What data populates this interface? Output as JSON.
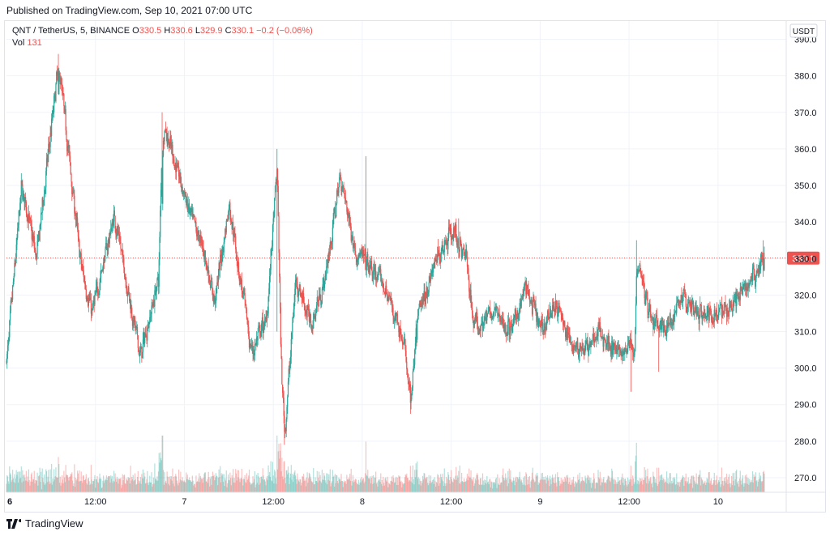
{
  "header": {
    "published": "Published on TradingView.com, Sep 10, 2021 07:00 UTC"
  },
  "legend": {
    "symbol": "QNT / TetherUS, 5, BINANCE",
    "o_label": "O",
    "o_value": "330.5",
    "h_label": "H",
    "h_value": "330.6",
    "l_label": "L",
    "l_value": "329.9",
    "c_label": "C",
    "c_value": "330.1",
    "change": "−0.2 (−0.06%)",
    "vol_label": "Vol",
    "vol_value": "131"
  },
  "currency_button": "USDT",
  "brand": {
    "name": "TradingView"
  },
  "colors": {
    "up": "#26a69a",
    "down": "#ef5350",
    "grid": "#f0f3fa",
    "text": "#131722",
    "price_line": "#ef5350"
  },
  "chart_data": {
    "type": "candlestick",
    "y_axis": {
      "ticks": [
        270.0,
        280.0,
        290.0,
        300.0,
        310.0,
        320.0,
        330.0,
        340.0,
        350.0,
        360.0,
        370.0,
        380.0,
        390.0
      ],
      "tick_labels": [
        "270.0",
        "280.0",
        "290.0",
        "300.0",
        "310.0",
        "320.0",
        "330.0",
        "340.0",
        "350.0",
        "360.0",
        "370.0",
        "380.0",
        "390.0"
      ],
      "range": [
        266,
        395
      ]
    },
    "x_axis": {
      "ticks": [
        "6",
        "12:00",
        "7",
        "12:00",
        "8",
        "12:00",
        "9",
        "12:00",
        "10"
      ],
      "bold": [
        true,
        false,
        false,
        false,
        false,
        false,
        false,
        false,
        false
      ],
      "range": [
        "2021-09-06 00:00",
        "2021-09-10 06:15"
      ]
    },
    "last_price": 330.1,
    "last_price_label": "330.1",
    "anchors": [
      [
        "2021-09-06 00:00",
        302
      ],
      [
        "2021-09-06 02:00",
        350
      ],
      [
        "2021-09-06 04:00",
        330
      ],
      [
        "2021-09-06 07:00",
        384
      ],
      [
        "2021-09-06 10:00",
        328
      ],
      [
        "2021-09-06 11:30",
        315
      ],
      [
        "2021-09-06 14:30",
        342
      ],
      [
        "2021-09-06 18:00",
        303
      ],
      [
        "2021-09-06 20:30",
        325
      ],
      [
        "2021-09-06 21:00",
        368
      ],
      [
        "2021-09-07 01:00",
        340
      ],
      [
        "2021-09-07 02:30",
        333
      ],
      [
        "2021-09-07 04:00",
        318
      ],
      [
        "2021-09-07 06:00",
        345
      ],
      [
        "2021-09-07 09:00",
        304
      ],
      [
        "2021-09-07 11:00",
        313
      ],
      [
        "2021-09-07 12:30",
        355
      ],
      [
        "2021-09-07 13:00",
        300
      ],
      [
        "2021-09-07 13:30",
        282
      ],
      [
        "2021-09-07 15:00",
        325
      ],
      [
        "2021-09-07 17:00",
        312
      ],
      [
        "2021-09-07 19:00",
        325
      ],
      [
        "2021-09-07 21:00",
        353
      ],
      [
        "2021-09-07 23:00",
        332
      ],
      [
        "2021-09-08 03:00",
        322
      ],
      [
        "2021-09-08 05:30",
        308
      ],
      [
        "2021-09-08 06:30",
        290
      ],
      [
        "2021-09-08 07:30",
        315
      ],
      [
        "2021-09-08 10:00",
        330
      ],
      [
        "2021-09-08 12:00",
        338
      ],
      [
        "2021-09-08 14:00",
        330
      ],
      [
        "2021-09-08 15:00",
        312
      ],
      [
        "2021-09-08 18:00",
        315
      ],
      [
        "2021-09-08 20:00",
        310
      ],
      [
        "2021-09-08 22:00",
        322
      ],
      [
        "2021-09-09 00:00",
        310
      ],
      [
        "2021-09-09 02:00",
        318
      ],
      [
        "2021-09-09 04:00",
        307
      ],
      [
        "2021-09-09 06:00",
        305
      ],
      [
        "2021-09-09 08:00",
        310
      ],
      [
        "2021-09-09 10:00",
        305
      ],
      [
        "2021-09-09 11:00",
        303
      ],
      [
        "2021-09-09 12:00",
        308
      ],
      [
        "2021-09-09 12:45",
        305
      ],
      [
        "2021-09-09 13:00",
        332
      ],
      [
        "2021-09-09 15:00",
        312
      ],
      [
        "2021-09-09 17:00",
        310
      ],
      [
        "2021-09-09 19:00",
        320
      ],
      [
        "2021-09-09 21:00",
        315
      ],
      [
        "2021-09-10 00:00",
        315
      ],
      [
        "2021-09-10 03:00",
        320
      ],
      [
        "2021-09-10 06:15",
        330.1
      ]
    ],
    "spikes": [
      [
        "2021-09-06 07:00",
        386,
        375
      ],
      [
        "2021-09-06 21:00",
        370,
        345
      ],
      [
        "2021-09-07 12:30",
        360,
        310
      ],
      [
        "2021-09-07 13:30",
        285,
        279
      ],
      [
        "2021-09-08 06:30",
        295,
        287.5
      ],
      [
        "2021-09-08 00:30",
        358,
        340
      ],
      [
        "2021-09-08 13:00",
        341,
        330
      ],
      [
        "2021-09-09 13:00",
        335,
        318
      ],
      [
        "2021-09-09 12:15",
        300,
        293.5
      ],
      [
        "2021-09-09 16:00",
        305,
        299
      ],
      [
        "2021-09-10 06:05",
        335,
        325
      ]
    ]
  }
}
